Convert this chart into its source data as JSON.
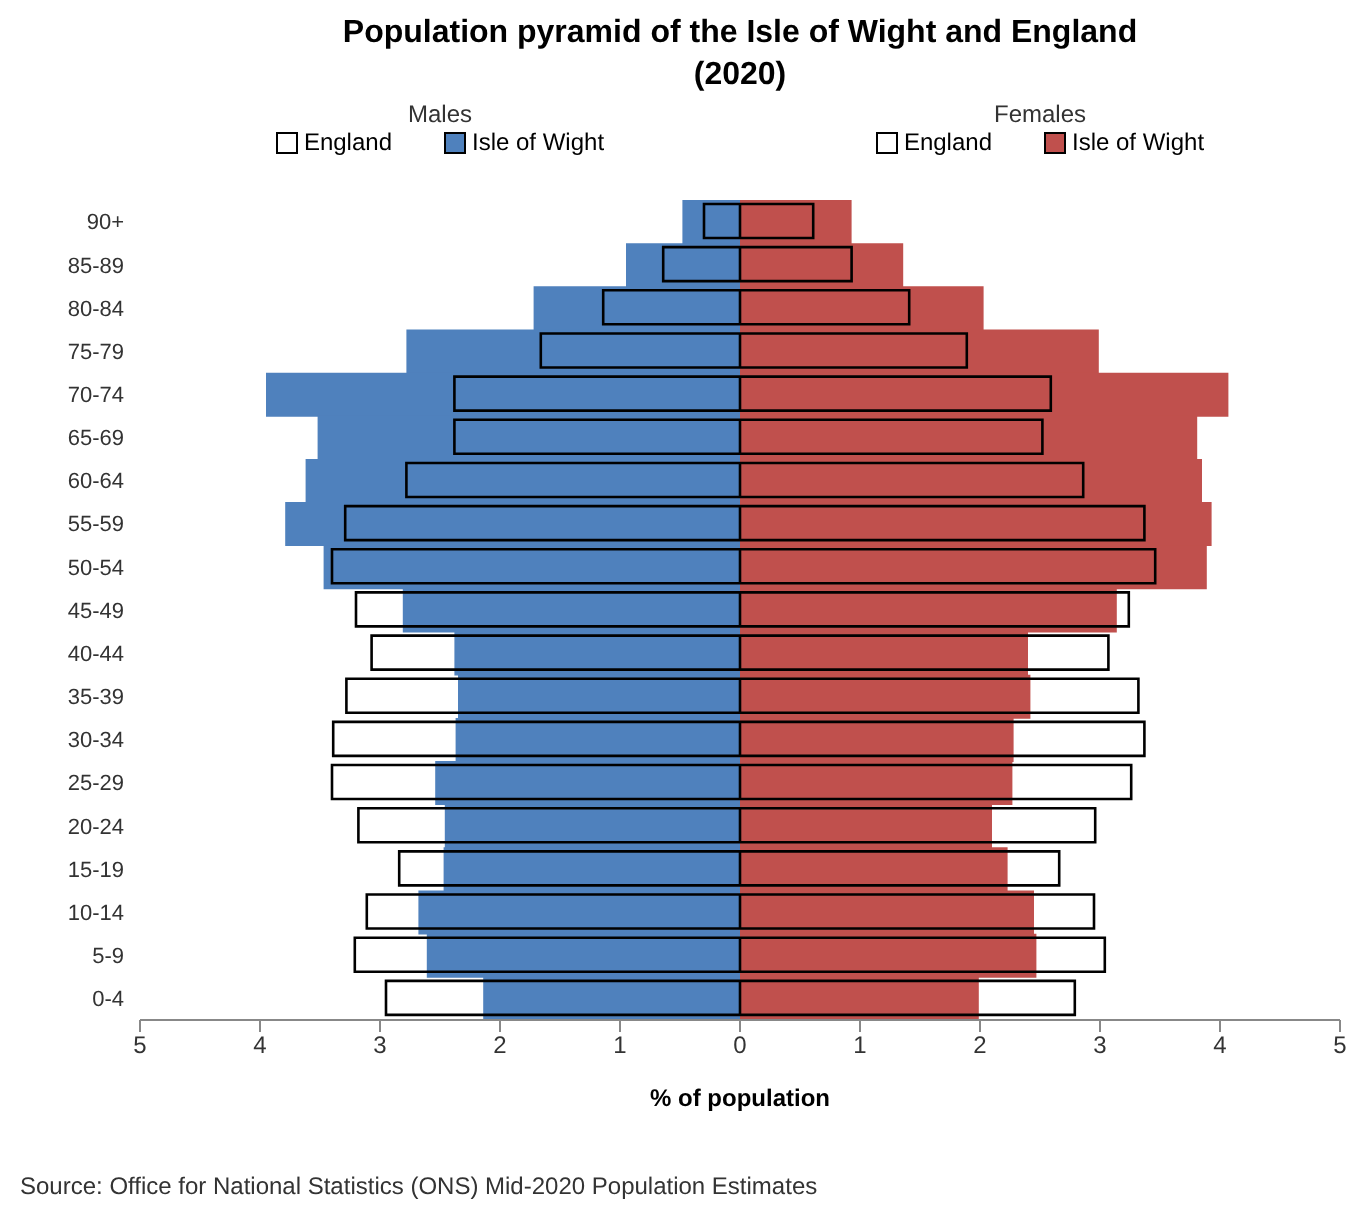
{
  "chart_data": [
    {
      "type": "bar",
      "orientation": "horizontal",
      "title": "Population pyramid of the Isle of Wight and England (2020)",
      "xlabel": "% of population",
      "legend_title": "Males",
      "categories": [
        "90+",
        "85-89",
        "80-84",
        "75-79",
        "70-74",
        "65-69",
        "60-64",
        "55-59",
        "50-54",
        "45-49",
        "40-44",
        "35-39",
        "30-34",
        "25-29",
        "20-24",
        "15-19",
        "10-14",
        "5-9",
        "0-4"
      ],
      "series": [
        {
          "name": "England",
          "color": "#000000",
          "values": [
            0.3,
            0.64,
            1.14,
            1.66,
            2.38,
            2.38,
            2.78,
            3.29,
            3.4,
            3.2,
            3.07,
            3.28,
            3.39,
            3.4,
            3.18,
            2.84,
            3.11,
            3.21,
            2.95
          ]
        },
        {
          "name": "Isle of Wight",
          "color": "#4f81bd",
          "values": [
            0.48,
            0.95,
            1.72,
            2.78,
            3.95,
            3.52,
            3.62,
            3.79,
            3.47,
            2.81,
            2.38,
            2.35,
            2.37,
            2.54,
            2.46,
            2.47,
            2.68,
            2.61,
            2.14
          ]
        }
      ],
      "xlim": [
        5,
        0
      ],
      "xticks": [
        5,
        4,
        3,
        2,
        1,
        0
      ],
      "legend": "top",
      "grid": false
    },
    {
      "type": "bar",
      "orientation": "horizontal",
      "legend_title": "Females",
      "tick_labels": "x",
      "categories": [
        "90+",
        "85-89",
        "80-84",
        "75-79",
        "70-74",
        "65-69",
        "60-64",
        "55-59",
        "50-54",
        "45-49",
        "40-44",
        "35-39",
        "30-34",
        "25-29",
        "20-24",
        "15-19",
        "10-14",
        "5-9",
        "0-4"
      ],
      "series": [
        {
          "name": "England",
          "color": "#000000",
          "values": [
            0.61,
            0.93,
            1.41,
            1.89,
            2.59,
            2.52,
            2.86,
            3.37,
            3.46,
            3.24,
            3.07,
            3.32,
            3.37,
            3.26,
            2.96,
            2.66,
            2.95,
            3.04,
            2.79
          ]
        },
        {
          "name": "Isle of Wight",
          "color": "#c0504d",
          "values": [
            0.93,
            1.36,
            2.03,
            2.99,
            4.07,
            3.81,
            3.85,
            3.93,
            3.89,
            3.14,
            2.4,
            2.42,
            2.28,
            2.27,
            2.1,
            2.23,
            2.45,
            2.47,
            1.99
          ]
        }
      ],
      "xlim": [
        0,
        5
      ],
      "xticks": [
        {
          "value": 0,
          "label": null
        },
        1,
        2,
        3,
        4,
        5
      ],
      "legend": "top",
      "grid": false,
      "annotations": [
        "Source: Office for National Statistics (ONS) Mid-2020 Population Estimates"
      ]
    }
  ]
}
